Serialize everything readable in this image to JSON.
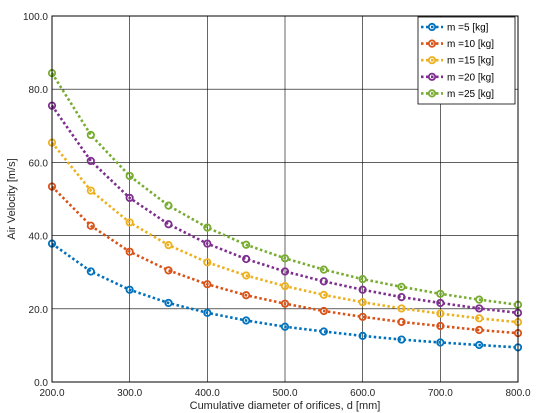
{
  "chart_data": {
    "type": "line",
    "title": "",
    "xlabel": "Cumulative diameter of orifices, d [mm]",
    "ylabel": "Air Velocity [m/s]",
    "xlim": [
      200,
      800
    ],
    "ylim": [
      0,
      100
    ],
    "xticks": [
      200,
      300,
      400,
      500,
      600,
      700,
      800
    ],
    "yticks": [
      0,
      20,
      40,
      60,
      80,
      100
    ],
    "xtick_labels": [
      "200.0",
      "300.0",
      "400.0",
      "500.0",
      "600.0",
      "700.0",
      "800.0"
    ],
    "ytick_labels": [
      "0.0",
      "20.0",
      "40.0",
      "60.0",
      "80.0",
      "100.0"
    ],
    "grid": true,
    "legend_position": "top-right",
    "x": [
      200,
      250,
      300,
      350,
      400,
      450,
      500,
      550,
      600,
      650,
      700,
      750,
      800
    ],
    "series": [
      {
        "name": "m =5 [kg]",
        "color": "#0072bd",
        "values": [
          37.8,
          30.2,
          25.2,
          21.6,
          18.9,
          16.8,
          15.1,
          13.8,
          12.6,
          11.6,
          10.8,
          10.1,
          9.45
        ]
      },
      {
        "name": "m =10 [kg]",
        "color": "#d95319",
        "values": [
          53.4,
          42.7,
          35.6,
          30.5,
          26.7,
          23.7,
          21.4,
          19.4,
          17.8,
          16.4,
          15.3,
          14.2,
          13.35
        ]
      },
      {
        "name": "m =15 [kg]",
        "color": "#edb120",
        "values": [
          65.4,
          52.3,
          43.6,
          37.4,
          32.7,
          29.1,
          26.2,
          23.8,
          21.8,
          20.1,
          18.7,
          17.4,
          16.35
        ]
      },
      {
        "name": "m =20 [kg]",
        "color": "#7e2f8e",
        "values": [
          75.5,
          60.4,
          50.3,
          43.1,
          37.8,
          33.6,
          30.2,
          27.5,
          25.2,
          23.2,
          21.6,
          20.1,
          18.9
        ]
      },
      {
        "name": "m =25 [kg]",
        "color": "#77ac30",
        "values": [
          84.4,
          67.5,
          56.3,
          48.2,
          42.2,
          37.5,
          33.8,
          30.7,
          28.1,
          26.0,
          24.1,
          22.5,
          21.1
        ]
      }
    ]
  }
}
